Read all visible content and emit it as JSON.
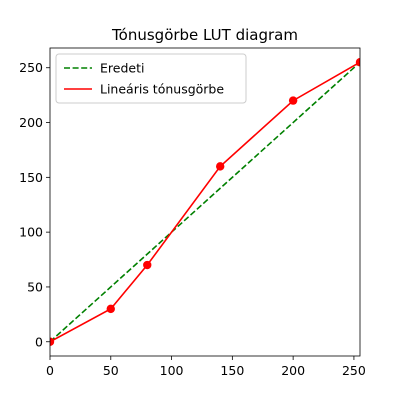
{
  "chart_data": {
    "type": "line",
    "title": "Tónusgörbe LUT diagram",
    "xlabel": "",
    "ylabel": "",
    "xlim": [
      0,
      255
    ],
    "ylim": [
      -13,
      268
    ],
    "xticks": [
      0,
      50,
      100,
      150,
      200,
      250
    ],
    "yticks": [
      0,
      50,
      100,
      150,
      200,
      250
    ],
    "grid": false,
    "legend_position": "top-left",
    "series": [
      {
        "name": "Eredeti",
        "color": "#008000",
        "style": "dashed",
        "markers": false,
        "x": [
          0,
          255
        ],
        "y": [
          0,
          255
        ]
      },
      {
        "name": "Lineáris tónusgörbe",
        "color": "#ff0000",
        "style": "solid",
        "markers": true,
        "x": [
          0,
          50,
          80,
          140,
          200,
          255
        ],
        "y": [
          0,
          30,
          70,
          160,
          220,
          255
        ]
      }
    ]
  }
}
